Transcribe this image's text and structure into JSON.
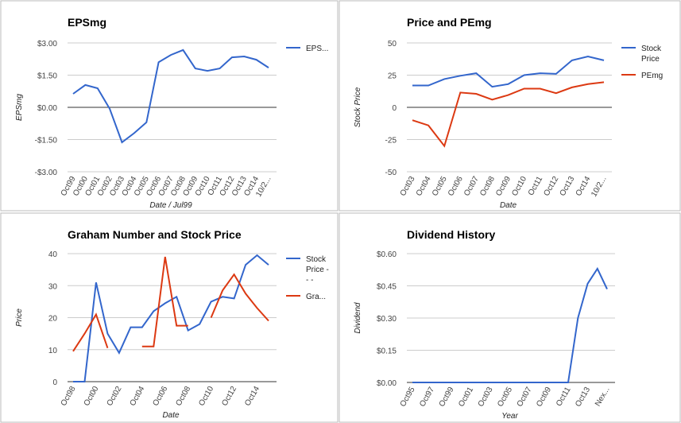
{
  "chart_data": [
    {
      "type": "line",
      "title": "EPSmg",
      "x_label": "Date / Jul99",
      "y_label": "EPSmg",
      "legend": "right",
      "grid": true,
      "categories": [
        "Oct99",
        "Oct00",
        "Oct01",
        "Oct02",
        "Oct03",
        "Oct04",
        "Oct05",
        "Oct06",
        "Oct07",
        "Oct08",
        "Oct09",
        "Oct10",
        "Oct11",
        "Oct12",
        "Oct13",
        "Oct14",
        "10/2..."
      ],
      "series": [
        {
          "name": "EPS...",
          "color": "#3366cc",
          "values": [
            0.63,
            1.04,
            0.89,
            -0.07,
            -1.63,
            -1.2,
            -0.7,
            2.1,
            2.44,
            2.67,
            1.81,
            1.7,
            1.81,
            2.33,
            2.37,
            2.22,
            1.85
          ]
        }
      ],
      "ylim": [
        -3,
        3
      ],
      "yticks": [
        {
          "value": -3,
          "label": "-$3.00"
        },
        {
          "value": -1.5,
          "label": "-$1.50"
        },
        {
          "value": 0,
          "label": "$0.00"
        },
        {
          "value": 1.5,
          "label": "$1.50"
        },
        {
          "value": 3,
          "label": "$3.00"
        }
      ]
    },
    {
      "type": "line",
      "title": "Price and PEmg",
      "x_label": "Date",
      "y_label": "Stock Price",
      "legend": "right",
      "grid": true,
      "categories": [
        "Oct03",
        "Oct04",
        "Oct05",
        "Oct06",
        "Oct07",
        "Oct08",
        "Oct09",
        "Oct10",
        "Oct11",
        "Oct12",
        "Oct13",
        "Oct14",
        "10/2..."
      ],
      "series": [
        {
          "name": "Stock Price",
          "color": "#3366cc",
          "values": [
            17,
            17,
            22,
            24.5,
            26.5,
            16,
            18,
            25,
            26.5,
            26,
            36.5,
            39.5,
            36.5
          ]
        },
        {
          "name": "PEmg",
          "color": "#dc3912",
          "values": [
            -10,
            -14,
            -30,
            11.5,
            10.5,
            6,
            9.5,
            14.5,
            14.5,
            11,
            15.5,
            18,
            19.5
          ]
        }
      ],
      "ylim": [
        -50,
        50
      ],
      "yticks": [
        -50,
        -25,
        0,
        25,
        50
      ]
    },
    {
      "type": "line",
      "title": "Graham Number and Stock Price",
      "x_label": "Date",
      "y_label": "Price",
      "legend": "right",
      "grid": true,
      "categories": [
        "Oct98",
        null,
        "Oct00",
        null,
        "Oct02",
        null,
        "Oct04",
        null,
        "Oct06",
        null,
        "Oct08",
        null,
        "Oct10",
        null,
        "Oct12",
        null,
        "Oct14",
        null
      ],
      "series": [
        {
          "name": "Stock Price - - -",
          "color": "#3366cc",
          "values": [
            0,
            0,
            31,
            15,
            9,
            17,
            17,
            22,
            24.5,
            26.5,
            16,
            18,
            25,
            26.5,
            26,
            36.5,
            39.5,
            36.5
          ]
        },
        {
          "name": "Gra...",
          "color": "#dc3912",
          "values": [
            9.5,
            15,
            21,
            10.5,
            null,
            null,
            11,
            11,
            39,
            17.5,
            17.5,
            null,
            20,
            28.5,
            33.5,
            27.5,
            23,
            19
          ]
        }
      ],
      "ylim": [
        0,
        40
      ],
      "yticks": [
        0,
        10,
        20,
        30,
        40
      ]
    },
    {
      "type": "line",
      "title": "Dividend History",
      "x_label": "Year",
      "y_label": "Dividend",
      "grid": true,
      "categories": [
        "Oct95",
        null,
        "Oct97",
        null,
        "Oct99",
        null,
        "Oct01",
        null,
        "Oct03",
        null,
        "Oct05",
        null,
        "Oct07",
        null,
        "Oct09",
        null,
        "Oct11",
        null,
        "Oct13",
        null,
        "Nex..."
      ],
      "series": [
        {
          "color": "#3366cc",
          "values": [
            0,
            0,
            0,
            0,
            0,
            0,
            0,
            0,
            0,
            0,
            0,
            0,
            0,
            0,
            0,
            0,
            0,
            0.3,
            0.46,
            0.53,
            0.435
          ]
        }
      ],
      "ylim": [
        0,
        0.6
      ],
      "yticks": [
        {
          "value": 0,
          "label": "$0.00"
        },
        {
          "value": 0.15,
          "label": "$0.15"
        },
        {
          "value": 0.3,
          "label": "$0.30"
        },
        {
          "value": 0.45,
          "label": "$0.45"
        },
        {
          "value": 0.6,
          "label": "$0.60"
        }
      ]
    }
  ]
}
